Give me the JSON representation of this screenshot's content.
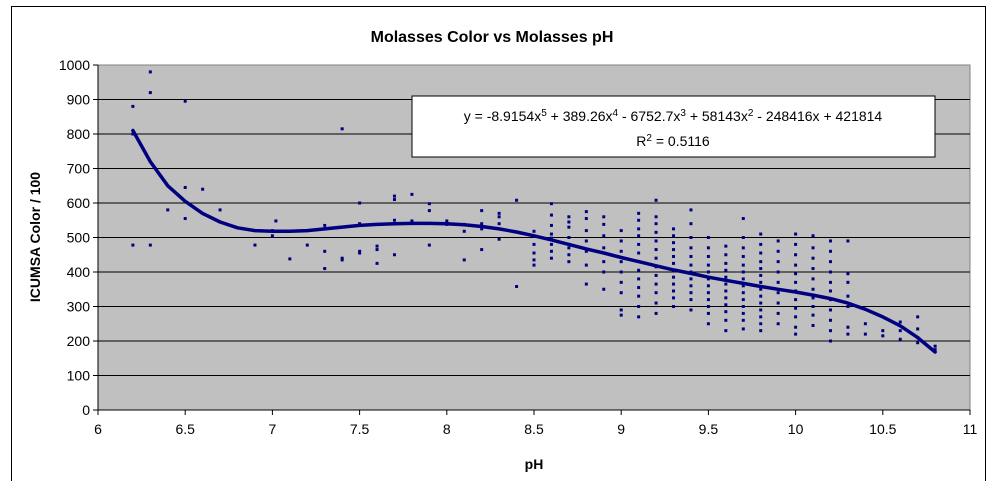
{
  "chart_data": {
    "type": "scatter",
    "title": "Molasses Color vs Molasses pH",
    "xlabel": "pH",
    "ylabel": "ICUMSA Color / 100",
    "xlim": [
      6,
      11
    ],
    "ylim": [
      0,
      1000
    ],
    "x_ticks": [
      "6",
      "6.5",
      "7",
      "7.5",
      "8",
      "8.5",
      "9",
      "9.5",
      "10",
      "10.5",
      "11"
    ],
    "y_ticks": [
      "0",
      "100",
      "200",
      "300",
      "400",
      "500",
      "600",
      "700",
      "800",
      "900",
      "1000"
    ],
    "grid": true,
    "plot_background": "#c0c0c0",
    "marker_color": "#000080",
    "trendline_color": "#000080",
    "trendline": {
      "type": "polynomial",
      "order": 5,
      "equation": {
        "lead": "y = -8.9154x",
        "exp5": "5",
        "t4": " + 389.26x",
        "exp4": "4",
        "t3": " - 6752.7x",
        "exp3": "3",
        "t2": " + 58143x",
        "exp2": "2",
        "t1": " - 248416x + 421814"
      },
      "r2": {
        "lead": "R",
        "exp": "2",
        "value": " = 0.5116"
      },
      "curve": [
        [
          6.2,
          810
        ],
        [
          6.3,
          720
        ],
        [
          6.4,
          650
        ],
        [
          6.5,
          605
        ],
        [
          6.6,
          570
        ],
        [
          6.7,
          545
        ],
        [
          6.8,
          528
        ],
        [
          6.9,
          520
        ],
        [
          7.0,
          518
        ],
        [
          7.1,
          518
        ],
        [
          7.2,
          520
        ],
        [
          7.3,
          525
        ],
        [
          7.4,
          530
        ],
        [
          7.5,
          535
        ],
        [
          7.6,
          538
        ],
        [
          7.7,
          540
        ],
        [
          7.8,
          541
        ],
        [
          7.9,
          541
        ],
        [
          8.0,
          540
        ],
        [
          8.1,
          537
        ],
        [
          8.2,
          532
        ],
        [
          8.3,
          525
        ],
        [
          8.4,
          516
        ],
        [
          8.5,
          505
        ],
        [
          8.6,
          493
        ],
        [
          8.7,
          480
        ],
        [
          8.8,
          467
        ],
        [
          8.9,
          455
        ],
        [
          9.0,
          442
        ],
        [
          9.1,
          430
        ],
        [
          9.2,
          418
        ],
        [
          9.3,
          406
        ],
        [
          9.4,
          396
        ],
        [
          9.5,
          385
        ],
        [
          9.6,
          376
        ],
        [
          9.7,
          367
        ],
        [
          9.8,
          358
        ],
        [
          9.9,
          350
        ],
        [
          10.0,
          342
        ],
        [
          10.1,
          333
        ],
        [
          10.2,
          323
        ],
        [
          10.3,
          310
        ],
        [
          10.4,
          292
        ],
        [
          10.5,
          270
        ],
        [
          10.6,
          244
        ],
        [
          10.7,
          210
        ],
        [
          10.8,
          168
        ]
      ]
    },
    "points": [
      [
        6.2,
        880
      ],
      [
        6.2,
        800
      ],
      [
        6.2,
        478
      ],
      [
        6.3,
        980
      ],
      [
        6.3,
        920
      ],
      [
        6.3,
        478
      ],
      [
        6.4,
        580
      ],
      [
        6.5,
        895
      ],
      [
        6.5,
        645
      ],
      [
        6.5,
        555
      ],
      [
        6.6,
        640
      ],
      [
        6.7,
        580
      ],
      [
        6.9,
        478
      ],
      [
        7.0,
        505
      ],
      [
        7.0,
        520
      ],
      [
        7.02,
        548
      ],
      [
        7.1,
        438
      ],
      [
        7.2,
        478
      ],
      [
        7.3,
        410
      ],
      [
        7.3,
        460
      ],
      [
        7.3,
        535
      ],
      [
        7.4,
        815
      ],
      [
        7.4,
        440
      ],
      [
        7.4,
        435
      ],
      [
        7.5,
        600
      ],
      [
        7.5,
        540
      ],
      [
        7.5,
        455
      ],
      [
        7.5,
        460
      ],
      [
        7.6,
        465
      ],
      [
        7.6,
        425
      ],
      [
        7.6,
        475
      ],
      [
        7.7,
        620
      ],
      [
        7.7,
        610
      ],
      [
        7.7,
        550
      ],
      [
        7.7,
        450
      ],
      [
        7.8,
        625
      ],
      [
        7.8,
        548
      ],
      [
        7.9,
        598
      ],
      [
        7.9,
        578
      ],
      [
        7.9,
        478
      ],
      [
        8.0,
        548
      ],
      [
        8.0,
        538
      ],
      [
        8.1,
        538
      ],
      [
        8.1,
        518
      ],
      [
        8.1,
        435
      ],
      [
        8.2,
        578
      ],
      [
        8.2,
        540
      ],
      [
        8.2,
        525
      ],
      [
        8.2,
        465
      ],
      [
        8.3,
        570
      ],
      [
        8.3,
        560
      ],
      [
        8.3,
        540
      ],
      [
        8.3,
        495
      ],
      [
        8.4,
        608
      ],
      [
        8.4,
        358
      ],
      [
        8.5,
        518
      ],
      [
        8.5,
        480
      ],
      [
        8.5,
        455
      ],
      [
        8.5,
        435
      ],
      [
        8.5,
        420
      ],
      [
        8.6,
        598
      ],
      [
        8.6,
        565
      ],
      [
        8.6,
        535
      ],
      [
        8.6,
        510
      ],
      [
        8.6,
        498
      ],
      [
        8.6,
        480
      ],
      [
        8.6,
        460
      ],
      [
        8.6,
        440
      ],
      [
        8.7,
        560
      ],
      [
        8.7,
        545
      ],
      [
        8.7,
        530
      ],
      [
        8.7,
        500
      ],
      [
        8.7,
        470
      ],
      [
        8.7,
        450
      ],
      [
        8.7,
        430
      ],
      [
        8.8,
        575
      ],
      [
        8.8,
        555
      ],
      [
        8.8,
        520
      ],
      [
        8.8,
        490
      ],
      [
        8.8,
        460
      ],
      [
        8.8,
        420
      ],
      [
        8.8,
        365
      ],
      [
        8.9,
        560
      ],
      [
        8.9,
        538
      ],
      [
        8.9,
        505
      ],
      [
        8.9,
        470
      ],
      [
        8.9,
        430
      ],
      [
        8.9,
        400
      ],
      [
        8.9,
        350
      ],
      [
        9.0,
        520
      ],
      [
        9.0,
        490
      ],
      [
        9.0,
        460
      ],
      [
        9.0,
        430
      ],
      [
        9.0,
        400
      ],
      [
        9.0,
        370
      ],
      [
        9.0,
        340
      ],
      [
        9.0,
        290
      ],
      [
        9.0,
        275
      ],
      [
        9.1,
        570
      ],
      [
        9.1,
        550
      ],
      [
        9.1,
        525
      ],
      [
        9.1,
        505
      ],
      [
        9.1,
        480
      ],
      [
        9.1,
        455
      ],
      [
        9.1,
        430
      ],
      [
        9.1,
        405
      ],
      [
        9.1,
        380
      ],
      [
        9.1,
        355
      ],
      [
        9.1,
        330
      ],
      [
        9.1,
        300
      ],
      [
        9.1,
        270
      ],
      [
        9.2,
        608
      ],
      [
        9.2,
        560
      ],
      [
        9.2,
        540
      ],
      [
        9.2,
        515
      ],
      [
        9.2,
        490
      ],
      [
        9.2,
        465
      ],
      [
        9.2,
        440
      ],
      [
        9.2,
        415
      ],
      [
        9.2,
        390
      ],
      [
        9.2,
        365
      ],
      [
        9.2,
        340
      ],
      [
        9.2,
        310
      ],
      [
        9.2,
        280
      ],
      [
        9.3,
        525
      ],
      [
        9.3,
        505
      ],
      [
        9.3,
        485
      ],
      [
        9.3,
        465
      ],
      [
        9.3,
        445
      ],
      [
        9.3,
        425
      ],
      [
        9.3,
        405
      ],
      [
        9.3,
        385
      ],
      [
        9.3,
        365
      ],
      [
        9.3,
        345
      ],
      [
        9.3,
        325
      ],
      [
        9.3,
        300
      ],
      [
        9.4,
        580
      ],
      [
        9.4,
        540
      ],
      [
        9.4,
        500
      ],
      [
        9.4,
        470
      ],
      [
        9.4,
        445
      ],
      [
        9.4,
        420
      ],
      [
        9.4,
        400
      ],
      [
        9.4,
        380
      ],
      [
        9.4,
        360
      ],
      [
        9.4,
        340
      ],
      [
        9.4,
        320
      ],
      [
        9.4,
        290
      ],
      [
        9.5,
        500
      ],
      [
        9.5,
        470
      ],
      [
        9.5,
        445
      ],
      [
        9.5,
        420
      ],
      [
        9.5,
        400
      ],
      [
        9.5,
        380
      ],
      [
        9.5,
        360
      ],
      [
        9.5,
        340
      ],
      [
        9.5,
        320
      ],
      [
        9.5,
        300
      ],
      [
        9.5,
        280
      ],
      [
        9.5,
        250
      ],
      [
        9.6,
        475
      ],
      [
        9.6,
        450
      ],
      [
        9.6,
        425
      ],
      [
        9.6,
        405
      ],
      [
        9.6,
        385
      ],
      [
        9.6,
        365
      ],
      [
        9.6,
        345
      ],
      [
        9.6,
        325
      ],
      [
        9.6,
        305
      ],
      [
        9.6,
        285
      ],
      [
        9.6,
        260
      ],
      [
        9.6,
        230
      ],
      [
        9.7,
        555
      ],
      [
        9.7,
        500
      ],
      [
        9.7,
        470
      ],
      [
        9.7,
        445
      ],
      [
        9.7,
        420
      ],
      [
        9.7,
        400
      ],
      [
        9.7,
        380
      ],
      [
        9.7,
        360
      ],
      [
        9.7,
        340
      ],
      [
        9.7,
        320
      ],
      [
        9.7,
        300
      ],
      [
        9.7,
        280
      ],
      [
        9.7,
        260
      ],
      [
        9.7,
        235
      ],
      [
        9.8,
        510
      ],
      [
        9.8,
        480
      ],
      [
        9.8,
        455
      ],
      [
        9.8,
        430
      ],
      [
        9.8,
        410
      ],
      [
        9.8,
        390
      ],
      [
        9.8,
        370
      ],
      [
        9.8,
        350
      ],
      [
        9.8,
        330
      ],
      [
        9.8,
        310
      ],
      [
        9.8,
        290
      ],
      [
        9.8,
        270
      ],
      [
        9.8,
        250
      ],
      [
        9.8,
        230
      ],
      [
        9.9,
        490
      ],
      [
        9.9,
        460
      ],
      [
        9.9,
        430
      ],
      [
        9.9,
        400
      ],
      [
        9.9,
        370
      ],
      [
        9.9,
        340
      ],
      [
        9.9,
        310
      ],
      [
        9.9,
        280
      ],
      [
        9.9,
        250
      ],
      [
        10.0,
        510
      ],
      [
        10.0,
        480
      ],
      [
        10.0,
        450
      ],
      [
        10.0,
        420
      ],
      [
        10.0,
        395
      ],
      [
        10.0,
        370
      ],
      [
        10.0,
        345
      ],
      [
        10.0,
        320
      ],
      [
        10.0,
        295
      ],
      [
        10.0,
        270
      ],
      [
        10.0,
        240
      ],
      [
        10.0,
        220
      ],
      [
        10.1,
        505
      ],
      [
        10.1,
        470
      ],
      [
        10.1,
        440
      ],
      [
        10.1,
        410
      ],
      [
        10.1,
        380
      ],
      [
        10.1,
        350
      ],
      [
        10.1,
        325
      ],
      [
        10.1,
        300
      ],
      [
        10.1,
        275
      ],
      [
        10.1,
        245
      ],
      [
        10.2,
        490
      ],
      [
        10.2,
        460
      ],
      [
        10.2,
        430
      ],
      [
        10.2,
        400
      ],
      [
        10.2,
        370
      ],
      [
        10.2,
        345
      ],
      [
        10.2,
        320
      ],
      [
        10.2,
        290
      ],
      [
        10.2,
        260
      ],
      [
        10.2,
        230
      ],
      [
        10.2,
        200
      ],
      [
        10.3,
        490
      ],
      [
        10.3,
        395
      ],
      [
        10.3,
        370
      ],
      [
        10.3,
        330
      ],
      [
        10.3,
        300
      ],
      [
        10.3,
        240
      ],
      [
        10.3,
        220
      ],
      [
        10.4,
        250
      ],
      [
        10.4,
        220
      ],
      [
        10.5,
        230
      ],
      [
        10.5,
        215
      ],
      [
        10.6,
        255
      ],
      [
        10.6,
        230
      ],
      [
        10.6,
        205
      ],
      [
        10.7,
        270
      ],
      [
        10.7,
        235
      ],
      [
        10.7,
        210
      ],
      [
        10.7,
        195
      ],
      [
        10.8,
        185
      ],
      [
        10.8,
        175
      ]
    ]
  }
}
